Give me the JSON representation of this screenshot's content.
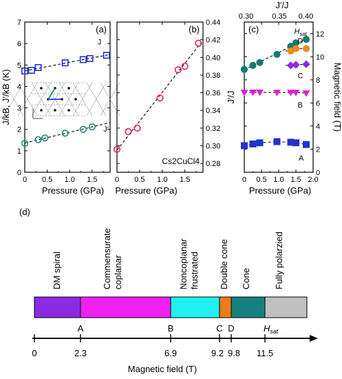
{
  "chart_data": [
    {
      "panel": "(a)",
      "type": "scatter",
      "xlabel": "Pressure (GPa)",
      "ylabel": "J/kB,  J′/kB (K)",
      "xlim": [
        0,
        1.9
      ],
      "ylim": [
        0,
        7
      ],
      "xticks": [
        "0",
        "0.5",
        "1.0",
        "1.5"
      ],
      "yticks": [
        "0",
        "1",
        "2",
        "3",
        "4",
        "5",
        "6",
        "7"
      ],
      "series": [
        {
          "name": "J",
          "marker": "square",
          "color": "#2233cc",
          "x": [
            0.0,
            0.15,
            0.3,
            0.9,
            1.3,
            1.45,
            1.82
          ],
          "y": [
            4.72,
            4.75,
            4.88,
            5.1,
            5.25,
            5.3,
            5.45
          ]
        },
        {
          "name": "J′",
          "marker": "circle",
          "color": "#1a8a78",
          "x": [
            0.0,
            0.3,
            0.45,
            0.9,
            1.3,
            1.5
          ],
          "y": [
            1.35,
            1.52,
            1.6,
            1.82,
            2.0,
            2.12
          ]
        }
      ]
    },
    {
      "panel": "(b)",
      "type": "scatter",
      "xlabel": "Pressure (GPa)",
      "ylabel": "J′/J",
      "annotation": "Cs2CuCl4",
      "xlim": [
        0,
        1.9
      ],
      "ylim": [
        0.27,
        0.44
      ],
      "xticks": [
        "0",
        "0.5",
        "1.0",
        "1.5"
      ],
      "yticks": [
        "0.28",
        "0.30",
        "0.32",
        "0.34",
        "0.36",
        "0.38",
        "0.40",
        "0.42",
        "0.44"
      ],
      "series": [
        {
          "marker": "circle",
          "color": "#e8205a",
          "x": [
            0.0,
            0.25,
            0.45,
            0.95,
            1.35,
            1.5,
            1.8
          ],
          "y": [
            0.296,
            0.316,
            0.32,
            0.354,
            0.386,
            0.39,
            0.416
          ]
        }
      ]
    },
    {
      "panel": "(c)",
      "type": "scatter",
      "xlabel": "Pressure (GPa)",
      "ylabel": "Magnetic field (T)",
      "top_xlabel": "J′/J",
      "top_xticks": [
        "0.30",
        "0.35",
        "0.40"
      ],
      "xlim": [
        0,
        2.0
      ],
      "ylim": [
        0,
        13
      ],
      "xticks": [
        "0",
        "0.5",
        "1.0",
        "1.5",
        "2.0"
      ],
      "yticks": [
        "0",
        "2",
        "4",
        "6",
        "8",
        "10",
        "12"
      ],
      "series": [
        {
          "name": "Hsat",
          "marker": "circle",
          "color": "#147a6e",
          "x": [
            0.0,
            0.25,
            0.45,
            0.95,
            1.35,
            1.5,
            1.8
          ],
          "y": [
            8.9,
            9.25,
            9.5,
            10.2,
            10.9,
            11.2,
            11.5
          ]
        },
        {
          "name": "D",
          "marker": "circle",
          "color": "#f08a20",
          "x": [
            1.35,
            1.5,
            1.8
          ],
          "y": [
            10.5,
            10.7,
            10.7
          ]
        },
        {
          "name": "C",
          "marker": "diamond",
          "color": "#8a2be2",
          "x": [
            1.35,
            1.5,
            1.8
          ],
          "y": [
            9.25,
            9.3,
            9.35
          ]
        },
        {
          "name": "B",
          "marker": "triangle-down",
          "color": "#e020d0",
          "x": [
            0.0,
            0.25,
            0.45,
            0.95,
            1.35,
            1.5,
            1.8
          ],
          "y": [
            6.9,
            6.92,
            6.92,
            6.9,
            6.9,
            6.9,
            6.85
          ]
        },
        {
          "name": "A",
          "marker": "square",
          "color": "#2233cc",
          "x": [
            0.0,
            0.25,
            0.45,
            0.95,
            1.35,
            1.5,
            1.8
          ],
          "y": [
            2.3,
            2.45,
            2.55,
            2.65,
            2.6,
            2.55,
            2.4
          ]
        }
      ]
    }
  ],
  "panel_d": {
    "label": "(d)",
    "phases": [
      {
        "name": "DM spiral",
        "from": 0,
        "to": 2.3,
        "color": "#8a2be2"
      },
      {
        "name": "Commensurate coplanar",
        "from": 2.3,
        "to": 6.9,
        "color": "#f020f0"
      },
      {
        "name": "Noncoplanar frustrated",
        "from": 6.9,
        "to": 9.2,
        "color": "#20f0f0"
      },
      {
        "name": "Double cone",
        "from": 9.2,
        "to": 9.8,
        "color": "#f07a18"
      },
      {
        "name": "Cone",
        "from": 9.8,
        "to": 11.5,
        "color": "#168080"
      },
      {
        "name": "Fully polarzied",
        "from": 11.5,
        "to": 13.7,
        "color": "#c0c0c0"
      }
    ],
    "points": [
      {
        "label": "A",
        "value": 2.3,
        "tick": "2.3"
      },
      {
        "label": "B",
        "value": 6.9,
        "tick": "6.9"
      },
      {
        "label": "C",
        "value": 9.2,
        "tick": "9.2"
      },
      {
        "label": "D",
        "value": 9.8,
        "tick": "9.8"
      },
      {
        "label": "Hsat",
        "value": 11.5,
        "tick": "11.5"
      }
    ],
    "zero_tick": "0",
    "axis_label": "Magnetic field (T)"
  }
}
